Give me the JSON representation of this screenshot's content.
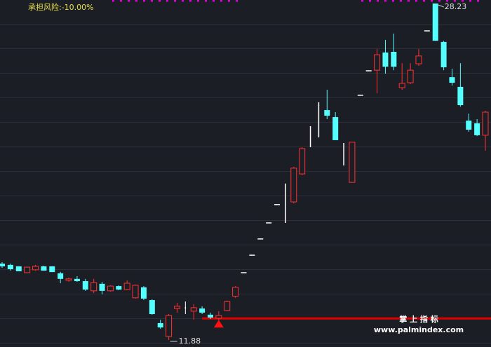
{
  "chart_data": {
    "type": "candlestick",
    "risk_label": "承担风险:-10.00%",
    "watermark_title": "掌 上 指 标",
    "watermark_url": "www.palmindex.com",
    "categories": [
      null,
      null,
      null,
      null,
      null,
      null,
      null,
      null,
      null,
      null,
      null,
      null,
      null,
      null,
      null,
      null,
      null,
      null,
      null,
      null,
      null,
      null,
      null,
      null,
      null,
      null,
      null,
      null,
      null,
      null,
      null,
      null,
      null,
      null,
      null,
      null,
      null,
      null,
      null,
      null,
      null,
      null,
      null,
      null,
      null,
      null,
      null,
      null,
      null,
      null,
      null,
      null,
      null,
      null,
      null,
      null,
      null,
      null,
      null
    ],
    "open": [
      15.59,
      15.53,
      15.46,
      15.15,
      15.29,
      15.46,
      15.46,
      15.12,
      14.78,
      14.85,
      14.74,
      14.27,
      14.61,
      14.27,
      14.5,
      14.33,
      13.93,
      14.44,
      13.82,
      12.7,
      12.05,
      13.41,
      13.41,
      13.28,
      13.41,
      13.11,
      12.94,
      13.31,
      14.01,
      15.15,
      16.0,
      16.79,
      17.57,
      18.46,
      17.57,
      18.59,
      19.95,
      21.25,
      21.73,
      23.05,
      22.71,
      20.36,
      19.54,
      23.77,
      24.96,
      24.99,
      25.85,
      25.88,
      24.14,
      24.38,
      25.3,
      26.9,
      28.23,
      26.36,
      24.65,
      24.18,
      22.54,
      22.41,
      21.83
    ],
    "high": [
      15.66,
      15.59,
      15.46,
      15.42,
      15.53,
      15.49,
      15.46,
      15.19,
      14.91,
      14.98,
      14.85,
      14.85,
      14.71,
      14.54,
      14.54,
      14.78,
      14.57,
      14.5,
      13.86,
      12.87,
      13.14,
      13.69,
      13.75,
      13.62,
      13.52,
      13.21,
      13.28,
      13.79,
      14.5,
      15.15,
      16.0,
      16.79,
      17.57,
      18.46,
      19.48,
      20.29,
      21.25,
      22.27,
      23.43,
      24.04,
      22.95,
      21.45,
      21.49,
      23.77,
      24.96,
      26.02,
      26.46,
      26.77,
      25.33,
      25.33,
      26.02,
      26.9,
      28.23,
      26.42,
      25.06,
      25.33,
      22.88,
      22.61,
      23.02
    ],
    "low": [
      15.39,
      15.25,
      15.22,
      15.15,
      15.25,
      15.25,
      15.18,
      14.64,
      14.71,
      14.71,
      14.27,
      14.16,
      14.1,
      14.23,
      14.3,
      14.3,
      13.89,
      13.82,
      13.11,
      12.43,
      11.88,
      13.21,
      13.14,
      12.87,
      13.14,
      12.9,
      12.83,
      13.28,
      13.93,
      15.15,
      16.0,
      16.79,
      17.57,
      18.46,
      17.57,
      18.52,
      19.89,
      21.25,
      21.73,
      22.61,
      21.59,
      20.36,
      19.54,
      23.77,
      24.96,
      23.87,
      24.82,
      24.99,
      24.04,
      24.31,
      25.2,
      26.9,
      26.42,
      24.99,
      24.24,
      23.22,
      22.0,
      21.79,
      21.08
    ],
    "close": [
      15.46,
      15.32,
      15.22,
      15.42,
      15.46,
      15.25,
      15.18,
      14.85,
      14.85,
      14.74,
      14.33,
      14.67,
      14.27,
      14.5,
      14.33,
      14.64,
      14.54,
      13.89,
      13.14,
      12.49,
      13.07,
      13.52,
      13.48,
      13.45,
      13.21,
      12.97,
      13.07,
      13.75,
      14.44,
      15.15,
      16.0,
      16.79,
      17.57,
      18.46,
      19.48,
      20.23,
      21.18,
      22.27,
      23.43,
      22.78,
      21.59,
      21.45,
      21.49,
      23.77,
      24.96,
      25.74,
      25.16,
      25.16,
      24.35,
      24.99,
      25.68,
      26.9,
      26.42,
      25.13,
      24.38,
      23.29,
      22.1,
      21.83,
      22.95
    ],
    "colors": [
      "#54ffff",
      "#54ffff",
      "#54ffff",
      "#ff3232",
      "#ff3232",
      "#54ffff",
      "#54ffff",
      "#54ffff",
      "#ff3232",
      "#54ffff",
      "#54ffff",
      "#ff3232",
      "#54ffff",
      "#ff3232",
      "#54ffff",
      "#ff3232",
      "#ff3232",
      "#54ffff",
      "#54ffff",
      "#54ffff",
      "#ff3232",
      "#ff3232",
      "#ffffff",
      "#ff3232",
      "#54ffff",
      "#54ffff",
      "#ff3232",
      "#ff3232",
      "#ff3232",
      "#ffffff",
      "#ffffff",
      "#ffffff",
      "#ffffff",
      "#ffffff",
      "#ffffff",
      "#ff3232",
      "#ff3232",
      "#ffffff",
      "#ffffff",
      "#54ffff",
      "#54ffff",
      "#ffffff",
      "#ff3232",
      "#ffffff",
      "#ffffff",
      "#ff3232",
      "#54ffff",
      "#54ffff",
      "#ff3232",
      "#ff3232",
      "#ff3232",
      "#ffffff",
      "#54ffff",
      "#54ffff",
      "#54ffff",
      "#54ffff",
      "#54ffff",
      "#54ffff",
      "#ff3232"
    ],
    "ylim": [
      11.54,
      28.4
    ],
    "reference_line": {
      "value": 12.93,
      "start_index": 24,
      "color": "#e00000"
    },
    "buy_signal_index": 26,
    "max_index": 52,
    "min_index": 20
  }
}
